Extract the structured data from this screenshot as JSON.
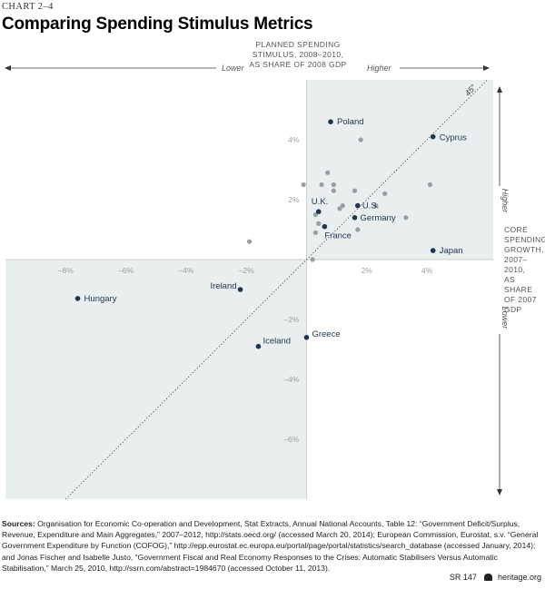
{
  "header": {
    "chart_number": "CHART 2–4",
    "title": "Comparing Spending Stimulus Metrics"
  },
  "chart_data": {
    "type": "scatter",
    "title": "Comparing Spending Stimulus Metrics",
    "xlabel": "PLANNED SPENDING STIMULUS, 2008–2010, AS SHARE OF 2008 GDP",
    "ylabel": "CORE SPENDING GROWTH, 2007–2010, AS SHARE OF 2007 GDP",
    "xlim": [
      -10,
      6.2
    ],
    "ylim": [
      -8,
      6
    ],
    "x_ticks": [
      -8,
      -6,
      -4,
      -2,
      2,
      4
    ],
    "y_ticks": [
      -6,
      -4,
      -2,
      2,
      4
    ],
    "x_tick_labels": [
      "–8%",
      "–6%",
      "–4%",
      "–2%",
      "2%",
      "4%"
    ],
    "y_tick_labels": [
      "–6%",
      "–4%",
      "–2%",
      "2%",
      "4%"
    ],
    "x_direction_labels": {
      "lower": "Lower",
      "higher": "Higher"
    },
    "y_direction_labels": {
      "higher": "Higher",
      "lower": "Lower"
    },
    "reference_line": {
      "label": "45°",
      "slope": 1,
      "intercept": 0
    },
    "shaded_quadrants": [
      "upper-right",
      "lower-left"
    ],
    "grid": false,
    "series": [
      {
        "points": [
          {
            "label": "Poland",
            "x": 0.8,
            "y": 4.6
          },
          {
            "label": "Cyprus",
            "x": 4.2,
            "y": 4.1
          },
          {
            "label": "U.K.",
            "x": 0.4,
            "y": 1.6
          },
          {
            "label": "U.S.",
            "x": 1.7,
            "y": 1.8
          },
          {
            "label": "Germany",
            "x": 1.6,
            "y": 1.4
          },
          {
            "label": "France",
            "x": 0.6,
            "y": 1.1
          },
          {
            "label": "Japan",
            "x": 4.2,
            "y": 0.3
          },
          {
            "label": "Ireland",
            "x": -2.2,
            "y": -1.0
          },
          {
            "label": "Hungary",
            "x": -7.6,
            "y": -1.3
          },
          {
            "label": "Greece",
            "x": 0.0,
            "y": -2.6
          },
          {
            "label": "Iceland",
            "x": -1.6,
            "y": -2.9
          }
        ]
      },
      {
        "points": [
          {
            "x": 1.8,
            "y": 4.0
          },
          {
            "x": 0.7,
            "y": 2.9
          },
          {
            "x": -0.1,
            "y": 2.5
          },
          {
            "x": 0.5,
            "y": 2.5
          },
          {
            "x": 0.9,
            "y": 2.5
          },
          {
            "x": 0.9,
            "y": 2.3
          },
          {
            "x": 1.6,
            "y": 2.3
          },
          {
            "x": 2.6,
            "y": 2.2
          },
          {
            "x": 4.1,
            "y": 2.5
          },
          {
            "x": 1.2,
            "y": 1.8
          },
          {
            "x": 1.1,
            "y": 1.7
          },
          {
            "x": 2.3,
            "y": 1.8
          },
          {
            "x": 0.3,
            "y": 1.5
          },
          {
            "x": 3.3,
            "y": 1.4
          },
          {
            "x": 0.4,
            "y": 1.2
          },
          {
            "x": 0.3,
            "y": 0.9
          },
          {
            "x": 1.7,
            "y": 1.0
          },
          {
            "x": -1.9,
            "y": 0.6
          },
          {
            "x": 0.2,
            "y": 0.0
          }
        ]
      }
    ]
  },
  "sources": {
    "label": "Sources:",
    "text": "Organisation for Economic Co-operation and Development, Stat Extracts, Annual National Accounts, Table 12: “Government Deficit/Surplus, Revenue, Expenditure and Main Aggregates,” 2007–2012, http://stats.oecd.org/ (accessed March 20, 2014); European Commission, Eurostat, s.v. “General Government Expenditure by Function (COFOG),” http://epp.eurostat.ec.europa.eu/portal/page/portal/statistics/search_database (accessed January, 2014); and Jonas Fischer and Isabelle Justo, “Government Fiscal and Real Economy Responses to the Crises: Automatic Stabilisers Versus Automatic Stabilisation,” March 25, 2010, http://ssrn.com/abstract=1984670 (accessed October 11, 2013)."
  },
  "footer": {
    "report_id": "SR 147",
    "site": "heritage.org"
  },
  "colors": {
    "shade": "#e9eeee",
    "labeled_point": "#1f3550",
    "unlabeled_point": "#9b9ea3",
    "axis": "#cfcfcf",
    "tick_label": "#a0a0a0"
  }
}
